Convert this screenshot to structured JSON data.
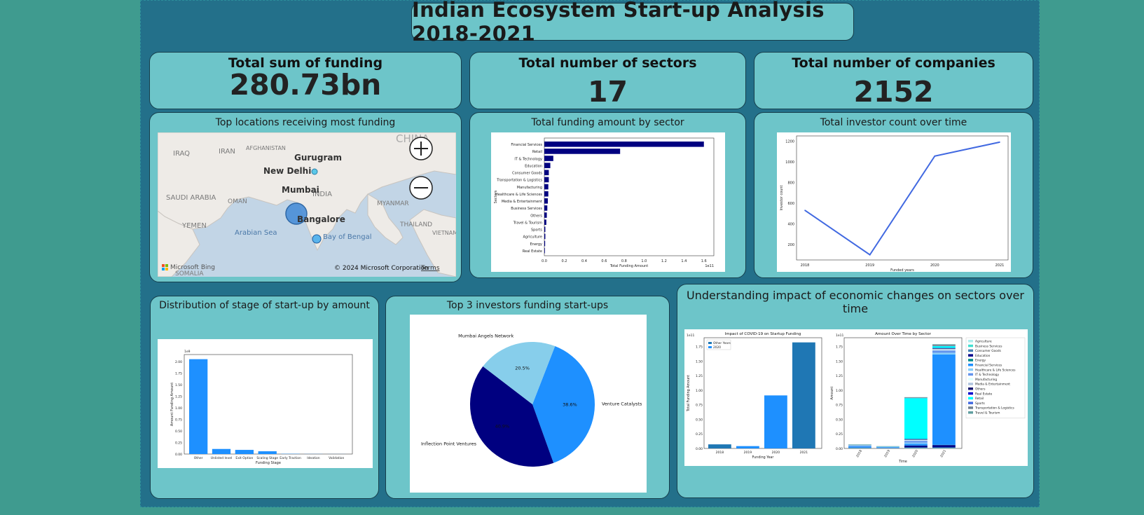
{
  "dashboard": {
    "title": "Indian Ecosystem Start-up Analysis 2018-2021"
  },
  "kpis": [
    {
      "label": "Total sum of funding",
      "value": "280.73bn"
    },
    {
      "label": "Total number of sectors",
      "value": "17"
    },
    {
      "label": "Total number of companies",
      "value": "2152"
    }
  ],
  "map": {
    "title": "Top locations receiving most funding",
    "cities": [
      "Gurugram",
      "New Delhi",
      "Mumbai",
      "Bangalore"
    ],
    "region_labels": [
      "IRAQ",
      "IRAN",
      "AFGHANISTAN",
      "CHINA",
      "SAUDI ARABIA",
      "OMAN",
      "INDIA",
      "MYANMAR",
      "YEMEN",
      "Arabian Sea",
      "Bay of Bengal",
      "THAILAND",
      "VIETNAM",
      "SOMALIA"
    ],
    "credit": "Microsoft Bing",
    "copyright": "© 2024 Microsoft Corporation",
    "terms": "Terms",
    "zoom_in_icon": "plus-circle-icon",
    "zoom_out_icon": "minus-circle-icon"
  },
  "panels": {
    "sector_title": "Total funding amount by sector",
    "investor_title": "Total investor count over time",
    "stage_title": "Distribution of stage of start-up by amount",
    "pie_title": "Top 3 investors funding start-ups",
    "impact_title": "Understanding impact of economic changes on sectors over time"
  },
  "chart_data": [
    {
      "type": "bar",
      "orientation": "horizontal",
      "categories": [
        "Financial Services",
        "Retail",
        "IT & Technology",
        "Education",
        "Consumer Goods",
        "Transportation & Logistics",
        "Manufacturing",
        "Healthcare & Life Sciences",
        "Media & Entertainment",
        "Business Services",
        "Others",
        "Travel & Tourism",
        "Sports",
        "Agriculture",
        "Energy",
        "Real Estate"
      ],
      "values": [
        1.6,
        0.76,
        0.09,
        0.06,
        0.045,
        0.045,
        0.04,
        0.04,
        0.035,
        0.03,
        0.025,
        0.02,
        0.01,
        0.01,
        0.008,
        0.005
      ],
      "xlabel": "Total Funding Amount",
      "ylabel": "Sectors",
      "xlim": [
        0,
        1.7
      ],
      "xticks": [
        "0.0",
        "0.2",
        "0.4",
        "0.6",
        "0.8",
        "1.0",
        "1.2",
        "1.4",
        "1.6"
      ],
      "offset_label": "1e11",
      "color": "#000080"
    },
    {
      "type": "line",
      "x": [
        "2018",
        "2019",
        "2020",
        "2021"
      ],
      "y": [
        530,
        100,
        1055,
        1190
      ],
      "xlabel": "Funded years",
      "ylabel": "Investor count",
      "ylim": [
        50,
        1250
      ],
      "yticks": [
        "200",
        "400",
        "600",
        "800",
        "1000",
        "1200"
      ],
      "color": "#4169e1"
    },
    {
      "type": "bar",
      "categories": [
        "Other",
        "Unlisted level",
        "Exit Option",
        "Scaling Stage",
        "Early Traction",
        "Ideation",
        "Validation"
      ],
      "values": [
        2.05,
        0.11,
        0.09,
        0.06,
        0.005,
        0.002,
        0.001
      ],
      "xlabel": "Funding Stage",
      "ylabel": "Amount Funding Amount",
      "ylim": [
        0,
        2.15
      ],
      "yticks": [
        "0.00",
        "0.25",
        "0.50",
        "0.75",
        "1.00",
        "1.25",
        "1.50",
        "1.75",
        "2.00"
      ],
      "offset_label": "1e9",
      "color": "#1e90ff"
    },
    {
      "type": "pie",
      "labels": [
        "Venture Catalysts",
        "Inflection Point Ventures",
        "Mumbai Angels Network"
      ],
      "values": [
        38.6,
        40.9,
        20.5
      ],
      "value_labels": [
        "38.6%",
        "40.9%",
        "20.5%"
      ],
      "colors": [
        "#1e90ff",
        "#000080",
        "#87ceeb"
      ]
    },
    {
      "type": "bar",
      "title": "Impact of COVID-19 on Startup Funding",
      "categories": [
        "2018",
        "2019",
        "2020",
        "2021"
      ],
      "values": [
        0.07,
        0.04,
        0.91,
        1.82
      ],
      "xlabel": "Funding Year",
      "ylabel": "Total Funding Amount",
      "ylim": [
        0,
        1.9
      ],
      "yticks": [
        "0.00",
        "0.25",
        "0.50",
        "0.75",
        "1.00",
        "1.25",
        "1.50",
        "1.75"
      ],
      "offset_label": "1e11",
      "legend": [
        "Other Years",
        "2020"
      ],
      "legend_placement": "top-left",
      "colors": [
        "#1f77b4",
        "#1e90ff",
        "#1e90ff",
        "#1f77b4"
      ]
    },
    {
      "type": "bar",
      "stacked": true,
      "title": "Amount Over Time by Sector",
      "categories": [
        "2018",
        "2019",
        "2020",
        "2021"
      ],
      "xlabel": "Time",
      "ylabel": "Amount",
      "ylim": [
        0,
        1.9
      ],
      "yticks": [
        "0.00",
        "0.25",
        "0.50",
        "0.75",
        "1.00",
        "1.25",
        "1.50",
        "1.75"
      ],
      "offset_label": "1e11",
      "legend_placement": "right",
      "series": [
        {
          "name": "Agriculture",
          "color": "#afeeee",
          "values": [
            0,
            0,
            0.003,
            0.003
          ]
        },
        {
          "name": "Business Services",
          "color": "#40e0d0",
          "values": [
            0.005,
            0.003,
            0.005,
            0.005
          ]
        },
        {
          "name": "Consumer Goods",
          "color": "#4682b4",
          "values": [
            0.005,
            0.004,
            0.01,
            0.01
          ]
        },
        {
          "name": "Education",
          "color": "#00008b",
          "values": [
            0.005,
            0.002,
            0.03,
            0.04
          ]
        },
        {
          "name": "Energy",
          "color": "#008b8b",
          "values": [
            0,
            0,
            0.003,
            0.004
          ]
        },
        {
          "name": "Financial Services",
          "color": "#1e90ff",
          "values": [
            0.02,
            0.01,
            0.03,
            1.55
          ]
        },
        {
          "name": "Healthcare & Life Sciences",
          "color": "#87cefa",
          "values": [
            0.005,
            0.002,
            0.02,
            0.03
          ]
        },
        {
          "name": "IT & Technology",
          "color": "#6495ed",
          "values": [
            0.01,
            0.005,
            0.03,
            0.04
          ]
        },
        {
          "name": "Manufacturing",
          "color": "#e0ffff",
          "values": [
            0.002,
            0.001,
            0.01,
            0.01
          ]
        },
        {
          "name": "Media & Entertainment",
          "color": "#b0c4de",
          "values": [
            0.003,
            0.002,
            0.01,
            0.02
          ]
        },
        {
          "name": "Others",
          "color": "#191970",
          "values": [
            0.003,
            0.002,
            0.01,
            0.01
          ]
        },
        {
          "name": "Real Estate",
          "color": "#0000cd",
          "values": [
            0,
            0,
            0.002,
            0.003
          ]
        },
        {
          "name": "Retail",
          "color": "#00ffff",
          "values": [
            0.005,
            0.004,
            0.7,
            0.03
          ]
        },
        {
          "name": "Sports",
          "color": "#4169e1",
          "values": [
            0,
            0,
            0.002,
            0.003
          ]
        },
        {
          "name": "Transportation & Logistics",
          "color": "#708090",
          "values": [
            0.005,
            0.003,
            0.01,
            0.02
          ]
        },
        {
          "name": "Travel & Tourism",
          "color": "#5f9ea0",
          "values": [
            0.002,
            0.001,
            0.005,
            0.01
          ]
        }
      ]
    }
  ]
}
